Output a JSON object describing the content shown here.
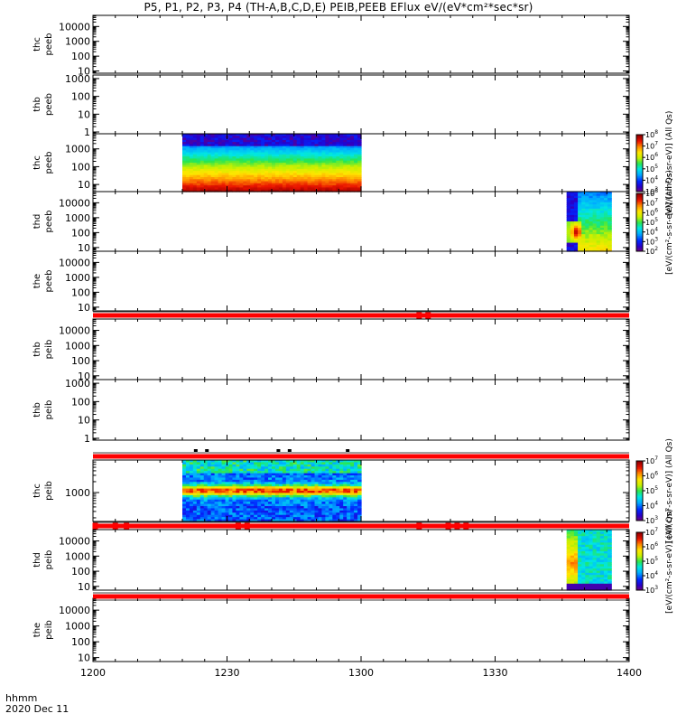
{
  "chart_data": {
    "type": "heatmap",
    "title": "P5, P1, P2, P3, P4 (TH-A,B,C,D,E) PEIB,PEEB EFlux eV/(eV*cm²*sec*sr)",
    "x_tick_labels": [
      "1200",
      "1230",
      "1300",
      "1330",
      "1400"
    ],
    "x_ticks_minutes": [
      0,
      30,
      60,
      90,
      120
    ],
    "xlim_minutes": [
      0,
      120
    ],
    "x_label_line1": "hhmm",
    "x_label_line2": "2020 Dec 11",
    "panels": [
      {
        "probe": "thc",
        "instrument": "peeb",
        "ylabels": [
          "10",
          "100",
          "1000",
          "10000"
        ],
        "log_ylim": [
          0.85,
          4.75
        ],
        "spectra": []
      },
      {
        "probe": "thb",
        "instrument": "peeb",
        "ylabels": [
          "1",
          "10",
          "100",
          "1000"
        ],
        "log_ylim": [
          -0.1,
          3.2
        ],
        "spectra": []
      },
      {
        "probe": "thc",
        "instrument": "peeb",
        "ylabels": [
          "10",
          "100",
          "1000"
        ],
        "log_ylim": [
          0.6,
          3.85
        ],
        "spectra": [
          {
            "start_minute": 20,
            "end_minute": 60,
            "kind": "electron_low"
          }
        ]
      },
      {
        "probe": "thd",
        "instrument": "peeb",
        "ylabels": [
          "10",
          "100",
          "1000",
          "10000"
        ],
        "log_ylim": [
          0.75,
          4.75
        ],
        "spectra": [
          {
            "start_minute": 106,
            "end_minute": 116,
            "kind": "electron_late"
          }
        ]
      },
      {
        "probe": "the",
        "instrument": "peeb",
        "ylabels": [
          "10",
          "100",
          "1000",
          "10000"
        ],
        "log_ylim": [
          0.75,
          4.75
        ],
        "spectra": []
      },
      {
        "probe": "thb",
        "instrument": "peib",
        "ylabels": [
          "10",
          "100",
          "1000",
          "10000"
        ],
        "log_ylim": [
          0.75,
          4.75
        ],
        "spectra": []
      },
      {
        "probe": "thb",
        "instrument": "peib",
        "ylabels": [
          "1",
          "10",
          "100",
          "1000"
        ],
        "log_ylim": [
          -0.1,
          3.2
        ],
        "spectra": []
      },
      {
        "probe": "thc",
        "instrument": "peib",
        "ylabels": [
          "1000"
        ],
        "log_ylim": [
          2.2,
          3.9
        ],
        "spectra": [
          {
            "start_minute": 20,
            "end_minute": 60,
            "kind": "ion_c"
          }
        ]
      },
      {
        "probe": "thd",
        "instrument": "peib",
        "ylabels": [
          "10",
          "100",
          "1000",
          "10000"
        ],
        "log_ylim": [
          0.75,
          4.75
        ],
        "spectra": [
          {
            "start_minute": 106,
            "end_minute": 116,
            "kind": "ion_d"
          }
        ]
      },
      {
        "probe": "the",
        "instrument": "peib",
        "ylabels": [
          "10",
          "100",
          "1000",
          "10000"
        ],
        "log_ylim": [
          0.75,
          4.75
        ],
        "spectra": []
      }
    ],
    "flag_bars": [
      {
        "after_panel": 4,
        "color": "#ff0000",
        "markers_minutes": [
          73,
          75
        ]
      },
      {
        "after_panel": 6,
        "color": "#ff0000",
        "markers_minutes": [],
        "black_ticks_minutes": [
          23,
          25.5,
          41.5,
          44,
          57
        ]
      },
      {
        "after_panel": 7,
        "color": "#ff0000",
        "markers_minutes": [
          0.5,
          5,
          7.5,
          32.5,
          34.5,
          73,
          79.5,
          81.5,
          83.5
        ]
      },
      {
        "after_panel": 8,
        "color": "#ff0000",
        "markers_minutes": []
      }
    ],
    "colorbars": [
      {
        "label": "[eV/(cm²-s-sr-eV)] (All Qs)",
        "tick_exponents": [
          3,
          4,
          5,
          6,
          7,
          8
        ],
        "attached_to_panel": 2
      },
      {
        "label": "[eV/(cm²-s-sr-eV)] (All Qs)",
        "tick_exponents": [
          2,
          3,
          4,
          5,
          6,
          7,
          8
        ],
        "attached_to_panel": 3
      },
      {
        "label": "[eV/(cm²-s-sr-eV)] (All Qs)",
        "tick_exponents": [
          3,
          4,
          5,
          6,
          7
        ],
        "attached_to_panel": 7
      },
      {
        "label": "[eV/(cm²-s-sr-eV)] (All Qs)",
        "tick_exponents": [
          3,
          4,
          5,
          6,
          7
        ],
        "attached_to_panel": 8
      }
    ]
  }
}
